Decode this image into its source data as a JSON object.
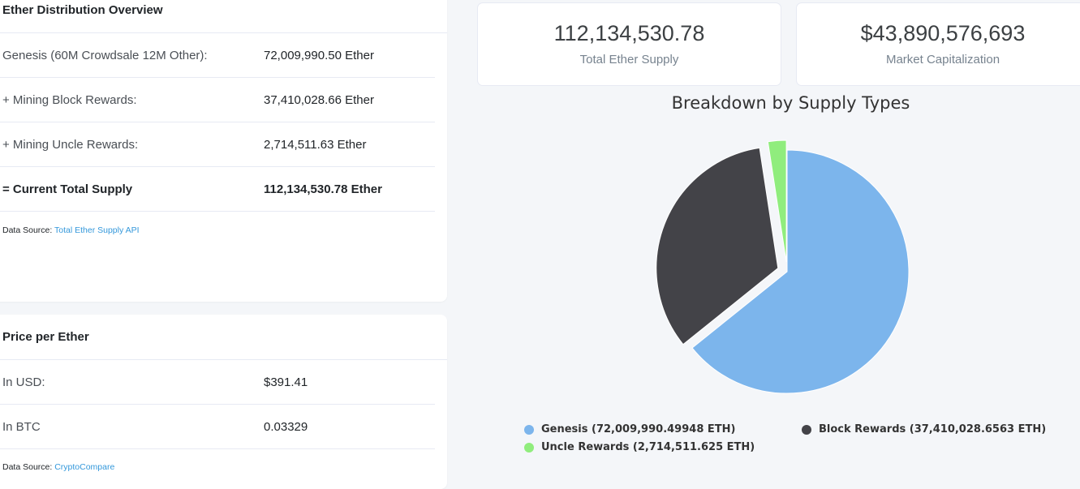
{
  "distribution": {
    "title": "Ether Distribution Overview",
    "rows": [
      {
        "label": "Genesis (60M Crowdsale 12M Other):",
        "value": "72,009,990.50 Ether"
      },
      {
        "label": "+ Mining Block Rewards:",
        "value": "37,410,028.66 Ether"
      },
      {
        "label": "+ Mining Uncle Rewards:",
        "value": "2,714,511.63 Ether"
      },
      {
        "label": "= Current Total Supply",
        "value": "112,134,530.78 Ether"
      }
    ],
    "source_prefix": "Data Source: ",
    "source_link": "Total Ether Supply API"
  },
  "price": {
    "title": "Price per Ether",
    "rows": [
      {
        "label": "In USD:",
        "value": "$391.41"
      },
      {
        "label": "In BTC",
        "value": "0.03329"
      }
    ],
    "source_prefix": "Data Source: ",
    "source_link": "CryptoCompare"
  },
  "stats": {
    "supply_value": "112,134,530.78",
    "supply_label": "Total Ether Supply",
    "cap_value": "$43,890,576,693",
    "cap_label": "Market Capitalization"
  },
  "chart_data": {
    "type": "pie",
    "title": "Breakdown by Supply Types",
    "slices": [
      {
        "name": "Genesis",
        "value": 72009990.49948,
        "color": "#7cb5ec",
        "legend": "Genesis (72,009,990.49948 ETH)"
      },
      {
        "name": "Block Rewards",
        "value": 37410028.6563,
        "color": "#434348",
        "legend": "Block Rewards (37,410,028.6563 ETH)"
      },
      {
        "name": "Uncle Rewards",
        "value": 2714511.625,
        "color": "#90ed7d",
        "legend": "Uncle Rewards (2,714,511.625 ETH)"
      }
    ],
    "legend_position": "bottom"
  }
}
